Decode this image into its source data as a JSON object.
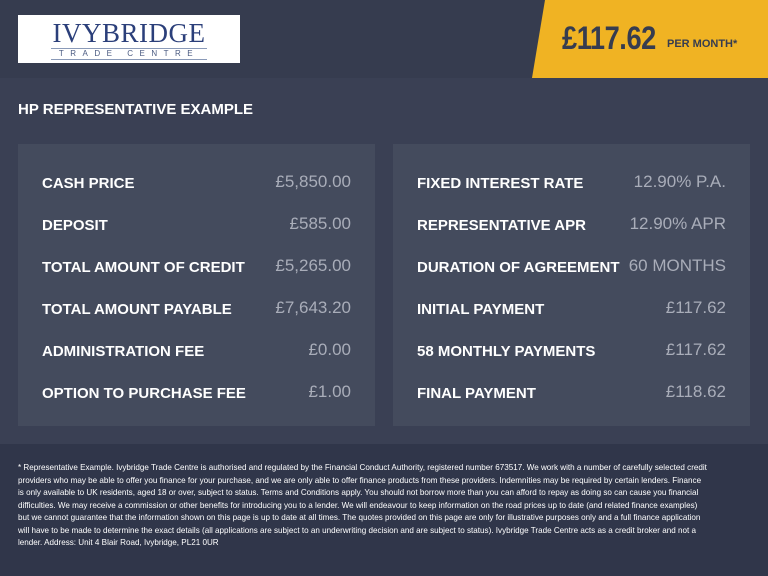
{
  "logo": {
    "name": "IVYBRIDGE",
    "tagline": "TRADE CENTRE"
  },
  "price": {
    "amount": "£117.62",
    "suffix": "PER MONTH*"
  },
  "heading": "HP REPRESENTATIVE EXAMPLE",
  "left": [
    {
      "label": "CASH PRICE",
      "value": "£5,850.00"
    },
    {
      "label": "DEPOSIT",
      "value": "£585.00"
    },
    {
      "label": "TOTAL AMOUNT OF CREDIT",
      "value": "£5,265.00"
    },
    {
      "label": "TOTAL AMOUNT PAYABLE",
      "value": "£7,643.20"
    },
    {
      "label": "ADMINISTRATION FEE",
      "value": "£0.00"
    },
    {
      "label": "OPTION TO PURCHASE FEE",
      "value": "£1.00"
    }
  ],
  "right": [
    {
      "label": "FIXED INTEREST RATE",
      "value": "12.90% P.A."
    },
    {
      "label": "REPRESENTATIVE APR",
      "value": "12.90% APR"
    },
    {
      "label": "DURATION OF AGREEMENT",
      "value": "60 MONTHS"
    },
    {
      "label": "INITIAL PAYMENT",
      "value": "£117.62"
    },
    {
      "label": "58 MONTHLY PAYMENTS",
      "value": "£117.62"
    },
    {
      "label": "FINAL PAYMENT",
      "value": "£118.62"
    }
  ],
  "disclaimer": "* Representative Example. Ivybridge Trade Centre is authorised and regulated by the Financial Conduct Authority, registered number 673517. We work with a number of carefully selected credit providers who may be able to offer you finance for your purchase, and we are only able to offer finance products from these providers. Indemnities may be required by certain lenders. Finance is only available to UK residents, aged 18 or over, subject to status. Terms and Conditions apply. You should not borrow more than you can afford to repay as doing so can cause you financial difficulties. We may receive a commission or other benefits for introducing you to a lender. We will endeavour to keep information on the road prices up to date (and related finance examples) but we cannot guarantee that the information shown on this page is up to date at all times. The quotes provided on this page are only for illustrative purposes only and a full finance application will have to be made to determine the exact details (all applications are subject to an underwriting decision and are subject to status). Ivybridge Trade Centre acts as a credit broker and not a lender. Address: Unit 4 Blair Road, Ivybridge, PL21 0UR",
  "colors": {
    "accent": "#f0b323",
    "background": "#3a4054",
    "panel": "#444b5d"
  }
}
